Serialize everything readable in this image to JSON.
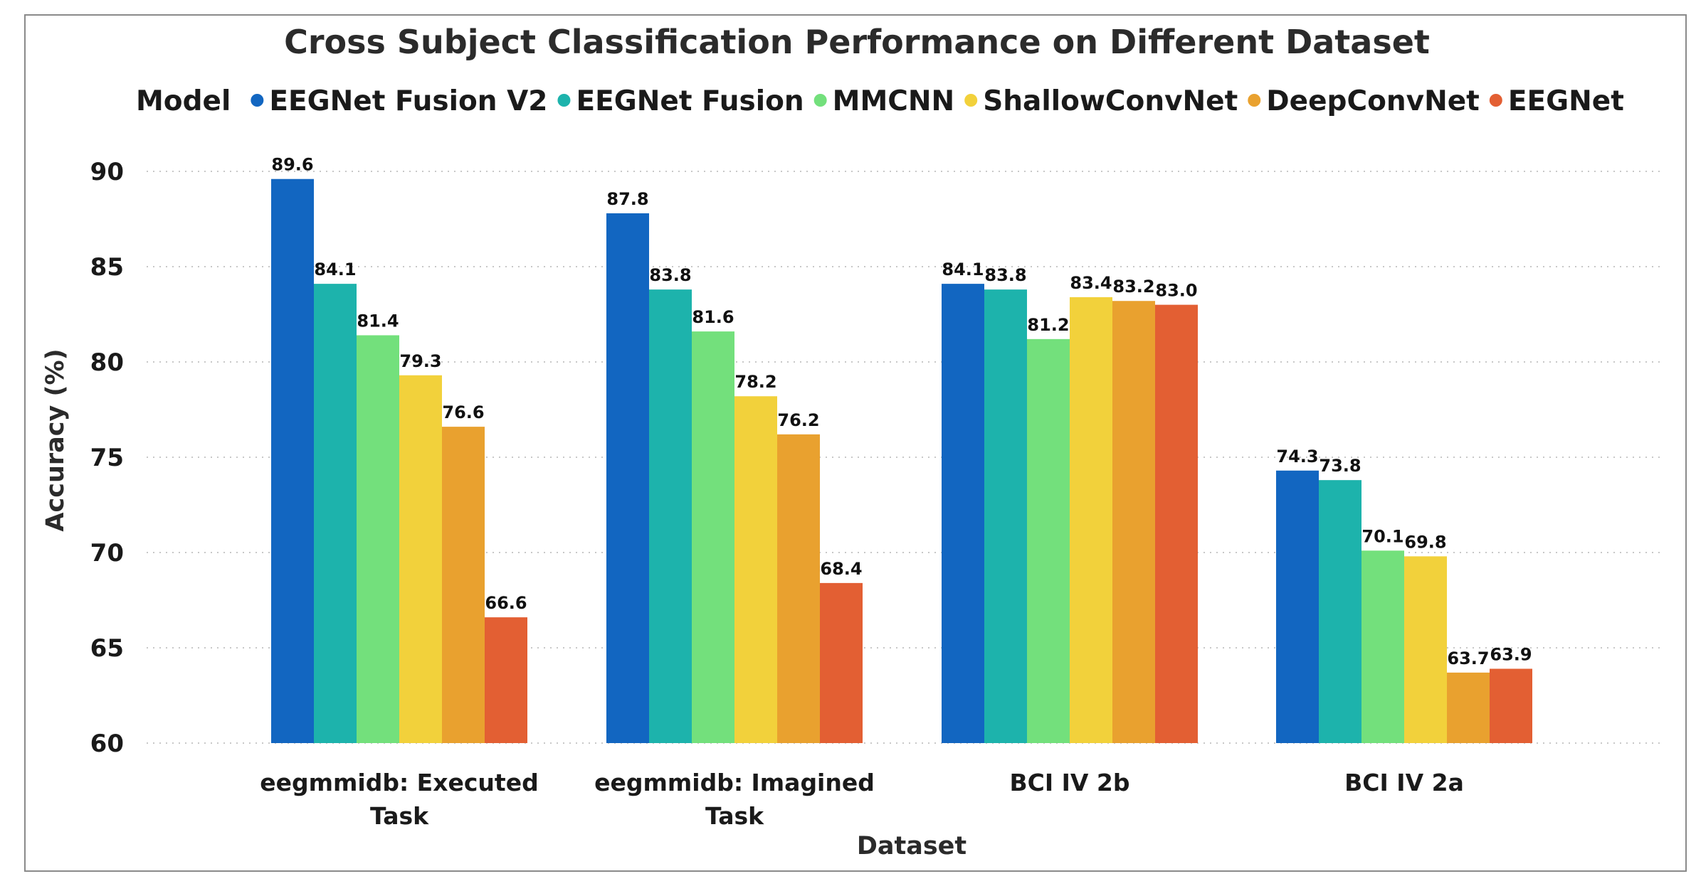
{
  "chart_data": {
    "type": "bar",
    "title": "Cross Subject Classification Performance on Different Dataset",
    "legend_title": "Model",
    "legend_position": "top-left",
    "xlabel": "Dataset",
    "ylabel": "Accuracy (%)",
    "ylim": [
      60,
      90
    ],
    "yticks": [
      "60",
      "65",
      "70",
      "75",
      "80",
      "85",
      "90"
    ],
    "grid": true,
    "categories": [
      [
        "eegmmidb: Executed",
        "Task"
      ],
      [
        "eegmmidb: Imagined",
        "Task"
      ],
      [
        "BCI IV 2b"
      ],
      [
        "BCI IV 2a"
      ]
    ],
    "series": [
      {
        "name": "EEGNet Fusion V2",
        "color": "#1266C1",
        "values": [
          89.6,
          87.8,
          84.1,
          74.3
        ],
        "labels": [
          "89.6",
          "87.8",
          "84.1",
          "74.3"
        ]
      },
      {
        "name": "EEGNet Fusion",
        "color": "#1DB3AC",
        "values": [
          84.1,
          83.8,
          83.8,
          73.8
        ],
        "labels": [
          "84.1",
          "83.8",
          "83.8",
          "73.8"
        ]
      },
      {
        "name": "MMCNN",
        "color": "#73E07C",
        "values": [
          81.4,
          81.6,
          81.2,
          70.1
        ],
        "labels": [
          "81.4",
          "81.6",
          "81.2",
          "70.1"
        ]
      },
      {
        "name": "ShallowConvNet",
        "color": "#F2D13B",
        "values": [
          79.3,
          78.2,
          83.4,
          69.8
        ],
        "labels": [
          "79.3",
          "78.2",
          "83.4",
          "69.8"
        ]
      },
      {
        "name": "DeepConvNet",
        "color": "#E9A12F",
        "values": [
          76.6,
          76.2,
          83.2,
          63.7
        ],
        "labels": [
          "76.6",
          "76.2",
          "83.2",
          "63.7"
        ]
      },
      {
        "name": "EEGNet",
        "color": "#E35F33",
        "values": [
          66.6,
          68.4,
          83.0,
          63.9
        ],
        "labels": [
          "66.6",
          "68.4",
          "83.0",
          "63.9"
        ]
      }
    ]
  }
}
